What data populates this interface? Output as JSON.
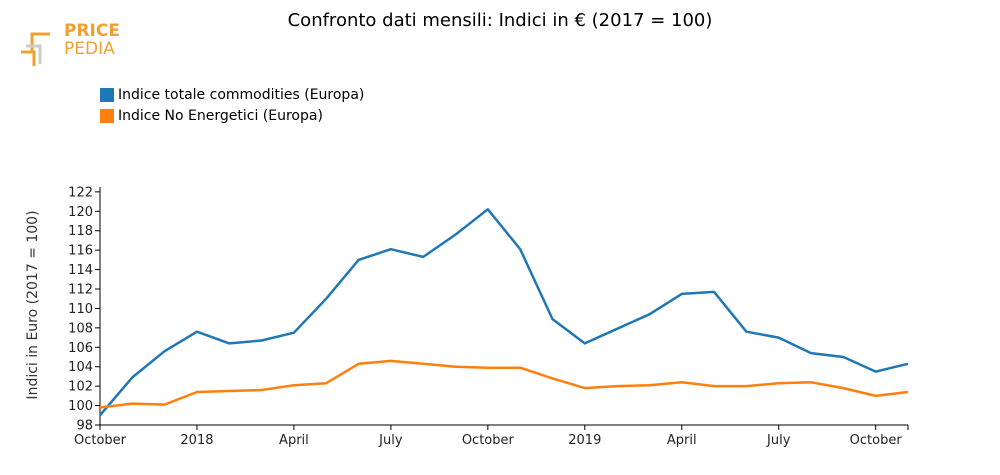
{
  "logo": {
    "line1": "PRICE",
    "line2": "PEDIA",
    "color": "#f0a030"
  },
  "chart_data": {
    "type": "line",
    "title": "Confronto dati mensili: Indici in € (2017 = 100)",
    "ylabel": "Indici in Euro (2017 = 100)",
    "xlabel": "",
    "ylim": [
      98,
      122.5
    ],
    "yticks": [
      98,
      100,
      102,
      104,
      106,
      108,
      110,
      112,
      114,
      116,
      118,
      120,
      122
    ],
    "x": [
      "2017-10",
      "2017-11",
      "2017-12",
      "2018-01",
      "2018-02",
      "2018-03",
      "2018-04",
      "2018-05",
      "2018-06",
      "2018-07",
      "2018-08",
      "2018-09",
      "2018-10",
      "2018-11",
      "2018-12",
      "2019-01",
      "2019-02",
      "2019-03",
      "2019-04",
      "2019-05",
      "2019-06",
      "2019-07",
      "2019-08",
      "2019-09",
      "2019-10",
      "2019-11"
    ],
    "xticks": [
      {
        "x": "2017-10",
        "label": "October"
      },
      {
        "x": "2018-01",
        "label": "2018"
      },
      {
        "x": "2018-04",
        "label": "April"
      },
      {
        "x": "2018-07",
        "label": "July"
      },
      {
        "x": "2018-10",
        "label": "October"
      },
      {
        "x": "2019-01",
        "label": "2019"
      },
      {
        "x": "2019-04",
        "label": "April"
      },
      {
        "x": "2019-07",
        "label": "July"
      },
      {
        "x": "2019-10",
        "label": "October"
      }
    ],
    "legend_position": "top-left",
    "grid": false,
    "series": [
      {
        "name": "Indice totale commodities (Europa)",
        "color": "#1f77b4",
        "values": [
          99.0,
          102.9,
          105.6,
          107.6,
          106.4,
          106.7,
          107.5,
          111.0,
          115.0,
          116.1,
          115.3,
          117.6,
          120.2,
          116.1,
          108.9,
          106.4,
          107.9,
          109.4,
          111.5,
          111.7,
          107.6,
          107.0,
          105.4,
          105.0,
          103.5,
          104.3
        ]
      },
      {
        "name": "Indice No Energetici (Europa)",
        "color": "#ff7f0e",
        "values": [
          99.8,
          100.2,
          100.1,
          101.4,
          101.5,
          101.6,
          102.1,
          102.3,
          104.3,
          104.6,
          104.3,
          104.0,
          103.9,
          103.9,
          102.8,
          101.8,
          102.0,
          102.1,
          102.4,
          102.0,
          102.0,
          102.3,
          102.4,
          101.8,
          101.0,
          101.4
        ]
      }
    ]
  }
}
